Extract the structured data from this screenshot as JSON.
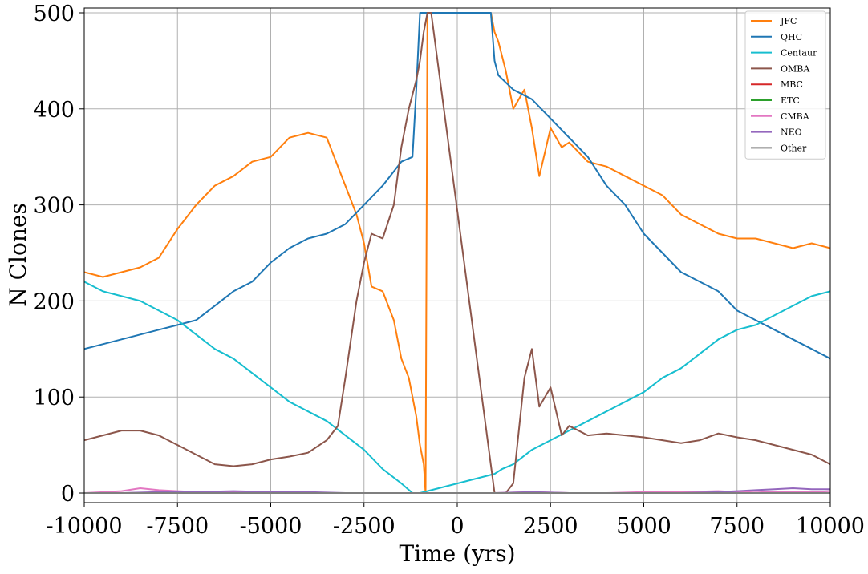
{
  "chart_data": {
    "type": "line",
    "xlabel": "Time (yrs)",
    "ylabel": "N Clones",
    "xlim": [
      -10000,
      10000
    ],
    "ylim": [
      -10,
      505
    ],
    "grid": true,
    "legend_position": "top-right",
    "x_ticks": [
      -10000,
      -7500,
      -5000,
      -2500,
      0,
      2500,
      5000,
      7500,
      10000
    ],
    "y_ticks": [
      0,
      100,
      200,
      300,
      400,
      500
    ],
    "series": [
      {
        "name": "JFC",
        "color": "#ff7f0e",
        "x": [
          -10000,
          -9500,
          -9000,
          -8500,
          -8000,
          -7500,
          -7000,
          -6500,
          -6000,
          -5500,
          -5000,
          -4500,
          -4000,
          -3500,
          -3000,
          -2700,
          -2500,
          -2300,
          -2000,
          -1700,
          -1500,
          -1300,
          -1100,
          -1000,
          -900,
          -850,
          -800,
          -700,
          900,
          1000,
          1100,
          1300,
          1500,
          1800,
          2000,
          2200,
          2500,
          2800,
          3000,
          3500,
          4000,
          4500,
          5000,
          5500,
          6000,
          6500,
          7000,
          7500,
          8000,
          8500,
          9000,
          9500,
          10000
        ],
        "y": [
          230,
          225,
          230,
          235,
          245,
          275,
          300,
          320,
          330,
          345,
          350,
          370,
          375,
          370,
          320,
          290,
          260,
          215,
          210,
          180,
          140,
          120,
          80,
          50,
          30,
          0,
          500,
          500,
          500,
          480,
          470,
          440,
          400,
          420,
          380,
          330,
          380,
          360,
          365,
          345,
          340,
          330,
          320,
          310,
          290,
          280,
          270,
          265,
          265,
          260,
          255,
          260,
          255
        ]
      },
      {
        "name": "QHC",
        "color": "#1f77b4",
        "x": [
          -10000,
          -9500,
          -9000,
          -8500,
          -8000,
          -7500,
          -7000,
          -6500,
          -6000,
          -5500,
          -5000,
          -4500,
          -4000,
          -3500,
          -3000,
          -2500,
          -2000,
          -1500,
          -1200,
          -1100,
          -1000,
          -900,
          -800,
          -700,
          900,
          1000,
          1100,
          1500,
          2000,
          2500,
          3000,
          3500,
          4000,
          4500,
          5000,
          5500,
          6000,
          6500,
          7000,
          7500,
          8000,
          8500,
          9000,
          9500,
          10000
        ],
        "y": [
          150,
          155,
          160,
          165,
          170,
          175,
          180,
          195,
          210,
          220,
          240,
          255,
          265,
          270,
          280,
          300,
          320,
          345,
          350,
          420,
          500,
          500,
          500,
          500,
          500,
          450,
          435,
          420,
          410,
          390,
          370,
          350,
          320,
          300,
          270,
          250,
          230,
          220,
          210,
          190,
          180,
          170,
          160,
          150,
          140
        ]
      },
      {
        "name": "Centaur",
        "color": "#17becf",
        "x": [
          -10000,
          -9500,
          -9000,
          -8500,
          -8000,
          -7500,
          -7000,
          -6500,
          -6000,
          -5500,
          -5000,
          -4500,
          -4000,
          -3500,
          -3000,
          -2500,
          -2000,
          -1500,
          -1200,
          -1000,
          1000,
          1200,
          1500,
          2000,
          2500,
          3000,
          3500,
          4000,
          4500,
          5000,
          5500,
          6000,
          6500,
          7000,
          7500,
          8000,
          8500,
          9000,
          9500,
          10000
        ],
        "y": [
          220,
          210,
          205,
          200,
          190,
          180,
          165,
          150,
          140,
          125,
          110,
          95,
          85,
          75,
          60,
          45,
          25,
          10,
          0,
          0,
          20,
          25,
          30,
          45,
          55,
          65,
          75,
          85,
          95,
          105,
          120,
          130,
          145,
          160,
          170,
          175,
          185,
          195,
          205,
          210
        ]
      },
      {
        "name": "OMBA",
        "color": "#8c564b",
        "x": [
          -10000,
          -9500,
          -9000,
          -8500,
          -8000,
          -7500,
          -7000,
          -6500,
          -6000,
          -5500,
          -5000,
          -4500,
          -4000,
          -3500,
          -3200,
          -3000,
          -2700,
          -2500,
          -2300,
          -2000,
          -1700,
          -1500,
          -1300,
          -1100,
          -1000,
          -900,
          -800,
          -700,
          1000,
          1300,
          1500,
          1800,
          2000,
          2200,
          2500,
          2800,
          3000,
          3500,
          4000,
          4500,
          5000,
          5500,
          6000,
          6500,
          7000,
          7500,
          8000,
          8500,
          9000,
          9500,
          10000
        ],
        "y": [
          55,
          60,
          65,
          65,
          60,
          50,
          40,
          30,
          28,
          30,
          35,
          38,
          42,
          55,
          70,
          120,
          200,
          240,
          270,
          265,
          300,
          360,
          400,
          430,
          450,
          480,
          500,
          500,
          0,
          0,
          10,
          120,
          150,
          90,
          110,
          60,
          70,
          60,
          62,
          60,
          58,
          55,
          52,
          55,
          62,
          58,
          55,
          50,
          45,
          40,
          30
        ]
      },
      {
        "name": "MBC",
        "color": "#d62728",
        "x": [
          -10000,
          10000
        ],
        "y": [
          0,
          0
        ]
      },
      {
        "name": "ETC",
        "color": "#2ca02c",
        "x": [
          -10000,
          10000
        ],
        "y": [
          0,
          0
        ]
      },
      {
        "name": "CMBA",
        "color": "#e377c2",
        "x": [
          -10000,
          -9500,
          -9000,
          -8500,
          -8000,
          -7500,
          -7000,
          -6000,
          -5000,
          -4000,
          -3000,
          -2000,
          -1000,
          0,
          1000,
          2000,
          3000,
          4000,
          5000,
          6000,
          7000,
          7500,
          8000,
          8500,
          9000,
          9500,
          10000
        ],
        "y": [
          0,
          1,
          2,
          5,
          3,
          2,
          1,
          1,
          1,
          0,
          0,
          0,
          0,
          0,
          0,
          1,
          0,
          0,
          1,
          1,
          2,
          1,
          2,
          1,
          1,
          1,
          2
        ]
      },
      {
        "name": "NEO",
        "color": "#9467bd",
        "x": [
          -10000,
          -9000,
          -8000,
          -7000,
          -6000,
          -5000,
          -4000,
          -3000,
          -2000,
          -1000,
          0,
          1000,
          2000,
          3000,
          4000,
          5000,
          6000,
          7000,
          7500,
          8000,
          8500,
          9000,
          9500,
          10000
        ],
        "y": [
          0,
          0,
          1,
          1,
          2,
          1,
          1,
          0,
          0,
          0,
          0,
          0,
          1,
          0,
          0,
          0,
          0,
          1,
          2,
          3,
          4,
          5,
          4,
          4
        ]
      },
      {
        "name": "Other",
        "color": "#7f7f7f",
        "x": [
          -10000,
          10000
        ],
        "y": [
          0,
          0
        ]
      }
    ]
  }
}
